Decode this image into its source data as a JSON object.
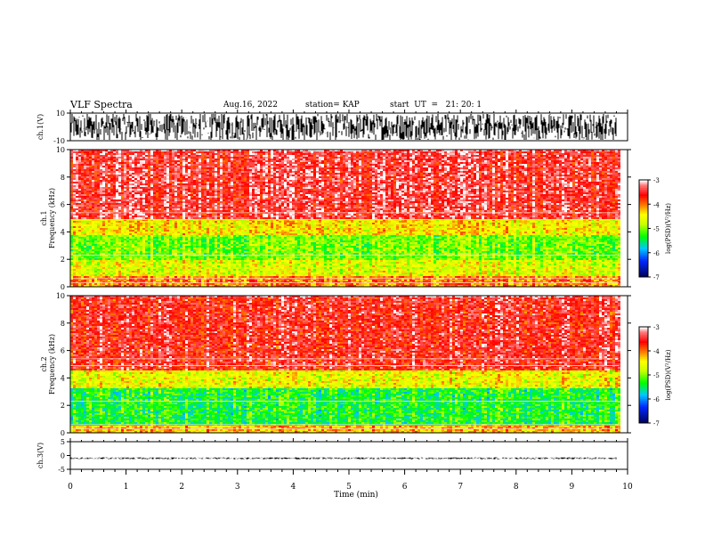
{
  "header": {
    "title": "VLF Spectra",
    "date": "Aug.16, 2022",
    "station": "station= KAP",
    "start": "start  UT  =   21: 20: 1"
  },
  "chart_data": [
    {
      "type": "line",
      "panel": "ch1-waveform",
      "ylabel": "ch.1(V)",
      "ylim": [
        -10,
        10
      ],
      "yticks": [
        10,
        -10
      ],
      "x_range_min": [
        0,
        9.8
      ],
      "note_values": "dense noise waveform saturating between -10 and 10 V"
    },
    {
      "type": "heatmap",
      "panel": "ch1-spectrogram",
      "ylabel": "ch.1\nFrequency (kHz)",
      "ylim": [
        0,
        10
      ],
      "yticks": [
        0,
        2,
        4,
        6,
        8,
        10
      ],
      "xlim": [
        0,
        10
      ],
      "colorbar": {
        "label": "log(PSD)(V²/Hz)",
        "range": [
          -7,
          -3
        ],
        "ticks": [
          -3,
          -4,
          -5,
          -6,
          -7
        ]
      },
      "bands": [
        {
          "freq_khz": [
            0,
            0.9
          ],
          "level": -4.0
        },
        {
          "freq_khz": [
            0.9,
            2.0
          ],
          "level": -4.6
        },
        {
          "freq_khz": [
            2.0,
            3.8
          ],
          "level": -5.0
        },
        {
          "freq_khz": [
            3.8,
            5.0
          ],
          "level": -4.4
        },
        {
          "freq_khz": [
            5.0,
            10.0
          ],
          "level": -3.4
        }
      ]
    },
    {
      "type": "heatmap",
      "panel": "ch2-spectrogram",
      "ylabel": "ch.2\nFrequency (kHz)",
      "ylim": [
        0,
        10
      ],
      "yticks": [
        0,
        2,
        4,
        6,
        8,
        10
      ],
      "xlim": [
        0,
        10
      ],
      "colorbar": {
        "label": "log(PSD)(V²/Hz)",
        "range": [
          -7,
          -3
        ],
        "ticks": [
          -3,
          -4,
          -5,
          -6,
          -7
        ]
      },
      "bands": [
        {
          "freq_khz": [
            0,
            0.6
          ],
          "level": -4.2
        },
        {
          "freq_khz": [
            0.6,
            3.3
          ],
          "level": -5.3
        },
        {
          "freq_khz": [
            3.3,
            4.6
          ],
          "level": -4.5
        },
        {
          "freq_khz": [
            4.6,
            10.0
          ],
          "level": -3.5
        }
      ]
    },
    {
      "type": "line",
      "panel": "ch3-waveform",
      "ylabel": "ch.3(V)",
      "ylim": [
        -5,
        5
      ],
      "yticks": [
        5,
        0,
        -5
      ],
      "x_range_min": [
        0,
        9.8
      ],
      "note_values": "narrow band around -1 V"
    }
  ],
  "xaxis": {
    "label": "Time  (min)",
    "ticks": [
      0,
      1,
      2,
      3,
      4,
      5,
      6,
      7,
      8,
      9,
      10
    ]
  },
  "colors": {
    "waveform": "#000000",
    "spectrum_high": "#ff0000",
    "spectrum_mid": "#ffff00",
    "spectrum_low": "#00ff00"
  }
}
